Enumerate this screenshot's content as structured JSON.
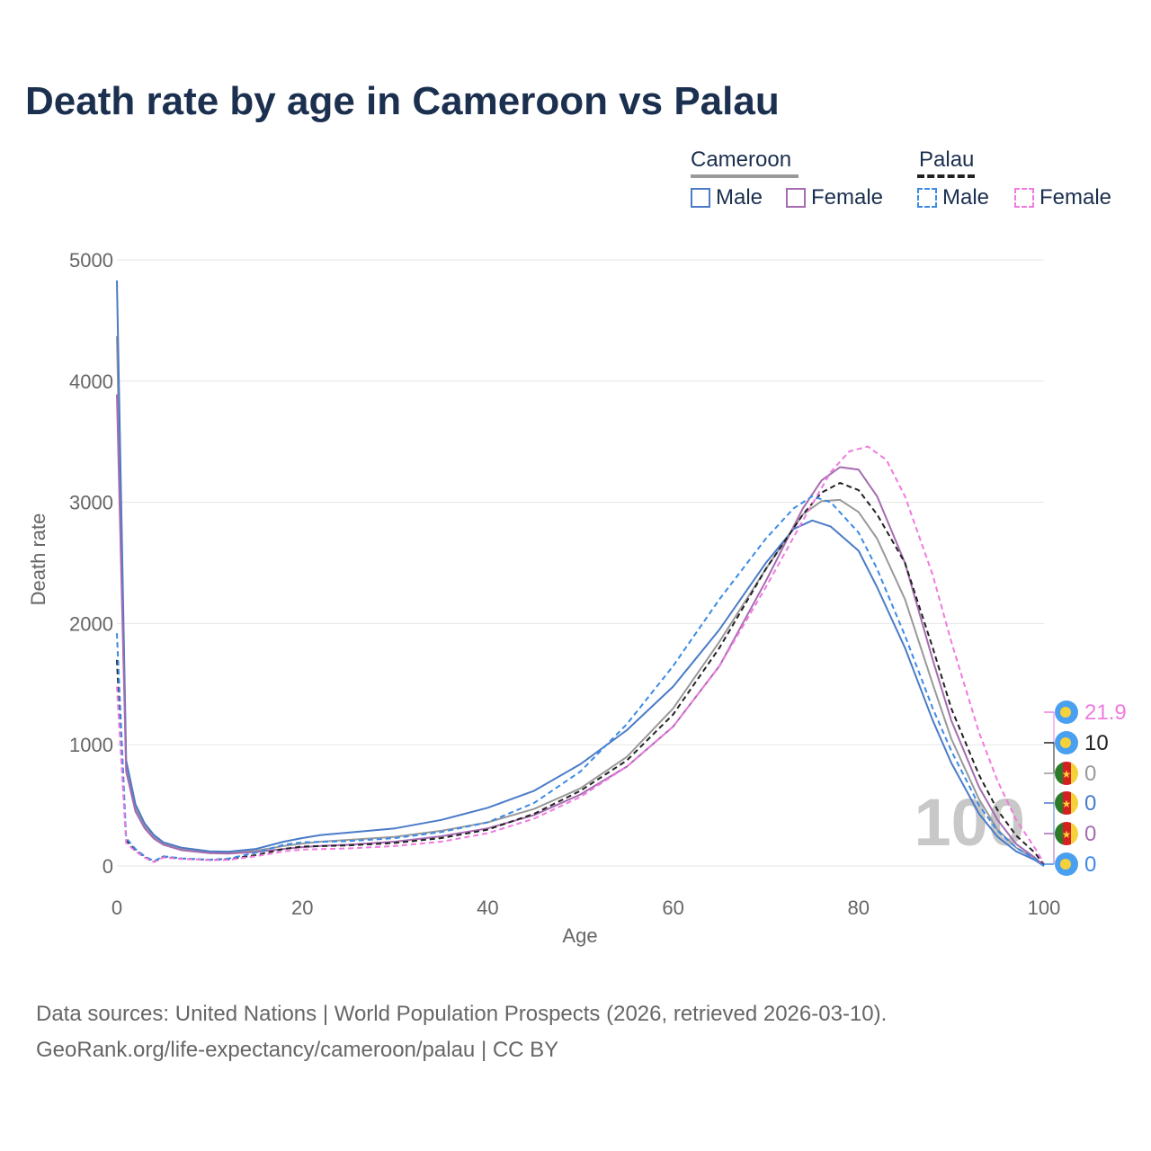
{
  "title": "Death rate by age in Cameroon vs Palau",
  "legend": {
    "groups": [
      {
        "name": "Cameroon",
        "line_color": "#999999",
        "items": [
          {
            "label": "Male",
            "color": "#4a7bc8",
            "style": "solid"
          },
          {
            "label": "Female",
            "color": "#a66bb0",
            "style": "solid"
          }
        ]
      },
      {
        "name": "Palau",
        "line_color": "#222222",
        "items": [
          {
            "label": "Male",
            "color": "#3b8ae6",
            "style": "dashed"
          },
          {
            "label": "Female",
            "color": "#f07ae0",
            "style": "dashed"
          }
        ]
      }
    ]
  },
  "footer": {
    "line1": "Data sources: United Nations | World Population Prospects (2026, retrieved 2026-03-10).",
    "line2": "GeoRank.org/life-expectancy/cameroon/palau | CC BY"
  },
  "watermark": "100",
  "end_labels": [
    {
      "value": "21.9",
      "color": "#f07ae0",
      "flag": "palau"
    },
    {
      "value": "10",
      "color": "#222222",
      "flag": "palau"
    },
    {
      "value": "0",
      "color": "#999999",
      "flag": "cameroon"
    },
    {
      "value": "0",
      "color": "#4a7bc8",
      "flag": "cameroon"
    },
    {
      "value": "0",
      "color": "#a66bb0",
      "flag": "cameroon"
    },
    {
      "value": "0",
      "color": "#3b8ae6",
      "flag": "palau"
    }
  ],
  "chart_data": {
    "type": "line",
    "title": "Death rate by age in Cameroon vs Palau",
    "xlabel": "Age",
    "ylabel": "Death rate",
    "xlim": [
      0,
      100
    ],
    "ylim": [
      0,
      5000
    ],
    "xticks": [
      "0",
      "20",
      "40",
      "60",
      "80",
      "100"
    ],
    "yticks": [
      "0",
      "1000",
      "2000",
      "3000",
      "4000",
      "5000"
    ],
    "grid": true,
    "series": [
      {
        "name": "Cameroon (both sexes)",
        "color": "#999999",
        "dash": "solid",
        "points": [
          [
            0,
            4370
          ],
          [
            1,
            820
          ],
          [
            2,
            480
          ],
          [
            3,
            330
          ],
          [
            4,
            240
          ],
          [
            5,
            185
          ],
          [
            7,
            140
          ],
          [
            10,
            115
          ],
          [
            12,
            110
          ],
          [
            15,
            125
          ],
          [
            18,
            165
          ],
          [
            20,
            185
          ],
          [
            22,
            200
          ],
          [
            25,
            215
          ],
          [
            30,
            240
          ],
          [
            35,
            290
          ],
          [
            40,
            360
          ],
          [
            45,
            470
          ],
          [
            50,
            640
          ],
          [
            55,
            900
          ],
          [
            60,
            1300
          ],
          [
            65,
            1850
          ],
          [
            70,
            2450
          ],
          [
            74,
            2900
          ],
          [
            76,
            3010
          ],
          [
            78,
            3020
          ],
          [
            80,
            2920
          ],
          [
            82,
            2700
          ],
          [
            85,
            2200
          ],
          [
            88,
            1500
          ],
          [
            90,
            1050
          ],
          [
            93,
            550
          ],
          [
            95,
            300
          ],
          [
            97,
            150
          ],
          [
            99,
            60
          ],
          [
            100,
            0
          ]
        ]
      },
      {
        "name": "Cameroon Male",
        "color": "#4a7bc8",
        "dash": "solid",
        "points": [
          [
            0,
            4830
          ],
          [
            1,
            870
          ],
          [
            2,
            510
          ],
          [
            3,
            350
          ],
          [
            4,
            255
          ],
          [
            5,
            195
          ],
          [
            7,
            150
          ],
          [
            10,
            120
          ],
          [
            12,
            118
          ],
          [
            15,
            140
          ],
          [
            18,
            200
          ],
          [
            20,
            230
          ],
          [
            22,
            255
          ],
          [
            25,
            275
          ],
          [
            30,
            310
          ],
          [
            35,
            380
          ],
          [
            40,
            480
          ],
          [
            45,
            620
          ],
          [
            50,
            840
          ],
          [
            55,
            1120
          ],
          [
            60,
            1480
          ],
          [
            65,
            1950
          ],
          [
            70,
            2500
          ],
          [
            73,
            2780
          ],
          [
            75,
            2850
          ],
          [
            77,
            2800
          ],
          [
            80,
            2600
          ],
          [
            82,
            2300
          ],
          [
            85,
            1800
          ],
          [
            88,
            1200
          ],
          [
            90,
            850
          ],
          [
            93,
            430
          ],
          [
            95,
            240
          ],
          [
            97,
            120
          ],
          [
            99,
            50
          ],
          [
            100,
            0
          ]
        ]
      },
      {
        "name": "Cameroon Female",
        "color": "#a66bb0",
        "dash": "solid",
        "points": [
          [
            0,
            3890
          ],
          [
            1,
            780
          ],
          [
            2,
            450
          ],
          [
            3,
            310
          ],
          [
            4,
            225
          ],
          [
            5,
            175
          ],
          [
            7,
            130
          ],
          [
            10,
            105
          ],
          [
            12,
            102
          ],
          [
            15,
            115
          ],
          [
            18,
            140
          ],
          [
            20,
            155
          ],
          [
            22,
            165
          ],
          [
            25,
            175
          ],
          [
            30,
            200
          ],
          [
            35,
            245
          ],
          [
            40,
            310
          ],
          [
            45,
            420
          ],
          [
            50,
            590
          ],
          [
            55,
            820
          ],
          [
            60,
            1150
          ],
          [
            65,
            1650
          ],
          [
            70,
            2350
          ],
          [
            74,
            2950
          ],
          [
            76,
            3180
          ],
          [
            78,
            3290
          ],
          [
            80,
            3270
          ],
          [
            82,
            3050
          ],
          [
            85,
            2500
          ],
          [
            88,
            1700
          ],
          [
            90,
            1200
          ],
          [
            93,
            650
          ],
          [
            95,
            380
          ],
          [
            97,
            180
          ],
          [
            99,
            70
          ],
          [
            100,
            0
          ]
        ]
      },
      {
        "name": "Palau (both sexes)",
        "color": "#222222",
        "dash": "dashed",
        "points": [
          [
            0,
            1700
          ],
          [
            1,
            210
          ],
          [
            2,
            130
          ],
          [
            3,
            75
          ],
          [
            4,
            35
          ],
          [
            5,
            75
          ],
          [
            7,
            60
          ],
          [
            10,
            50
          ],
          [
            12,
            55
          ],
          [
            15,
            90
          ],
          [
            18,
            140
          ],
          [
            20,
            160
          ],
          [
            25,
            170
          ],
          [
            30,
            190
          ],
          [
            35,
            230
          ],
          [
            40,
            300
          ],
          [
            45,
            430
          ],
          [
            50,
            620
          ],
          [
            55,
            870
          ],
          [
            60,
            1250
          ],
          [
            65,
            1800
          ],
          [
            70,
            2450
          ],
          [
            74,
            2900
          ],
          [
            76,
            3080
          ],
          [
            78,
            3160
          ],
          [
            80,
            3100
          ],
          [
            82,
            2900
          ],
          [
            85,
            2500
          ],
          [
            88,
            1800
          ],
          [
            90,
            1300
          ],
          [
            93,
            750
          ],
          [
            95,
            460
          ],
          [
            97,
            250
          ],
          [
            99,
            110
          ],
          [
            100,
            10
          ]
        ]
      },
      {
        "name": "Palau Male",
        "color": "#3b8ae6",
        "dash": "dashed",
        "points": [
          [
            0,
            1920
          ],
          [
            1,
            230
          ],
          [
            2,
            140
          ],
          [
            3,
            80
          ],
          [
            4,
            40
          ],
          [
            5,
            80
          ],
          [
            7,
            62
          ],
          [
            10,
            52
          ],
          [
            12,
            60
          ],
          [
            15,
            110
          ],
          [
            18,
            175
          ],
          [
            20,
            195
          ],
          [
            25,
            205
          ],
          [
            30,
            230
          ],
          [
            35,
            280
          ],
          [
            40,
            360
          ],
          [
            45,
            520
          ],
          [
            50,
            780
          ],
          [
            55,
            1170
          ],
          [
            60,
            1650
          ],
          [
            65,
            2200
          ],
          [
            70,
            2700
          ],
          [
            73,
            2950
          ],
          [
            75,
            3050
          ],
          [
            77,
            3000
          ],
          [
            80,
            2750
          ],
          [
            82,
            2450
          ],
          [
            85,
            1900
          ],
          [
            88,
            1300
          ],
          [
            90,
            950
          ],
          [
            93,
            500
          ],
          [
            95,
            290
          ],
          [
            97,
            150
          ],
          [
            99,
            60
          ],
          [
            100,
            0
          ]
        ]
      },
      {
        "name": "Palau Female",
        "color": "#f07ae0",
        "dash": "dashed",
        "points": [
          [
            0,
            1480
          ],
          [
            1,
            190
          ],
          [
            2,
            120
          ],
          [
            3,
            70
          ],
          [
            4,
            32
          ],
          [
            5,
            70
          ],
          [
            7,
            58
          ],
          [
            10,
            48
          ],
          [
            12,
            50
          ],
          [
            15,
            80
          ],
          [
            18,
            120
          ],
          [
            20,
            135
          ],
          [
            25,
            145
          ],
          [
            30,
            165
          ],
          [
            35,
            200
          ],
          [
            40,
            270
          ],
          [
            45,
            390
          ],
          [
            50,
            570
          ],
          [
            55,
            820
          ],
          [
            60,
            1150
          ],
          [
            65,
            1650
          ],
          [
            70,
            2300
          ],
          [
            74,
            2850
          ],
          [
            77,
            3250
          ],
          [
            79,
            3420
          ],
          [
            81,
            3460
          ],
          [
            83,
            3350
          ],
          [
            85,
            3050
          ],
          [
            88,
            2400
          ],
          [
            90,
            1850
          ],
          [
            93,
            1100
          ],
          [
            95,
            700
          ],
          [
            97,
            380
          ],
          [
            99,
            150
          ],
          [
            100,
            22
          ]
        ]
      }
    ]
  }
}
